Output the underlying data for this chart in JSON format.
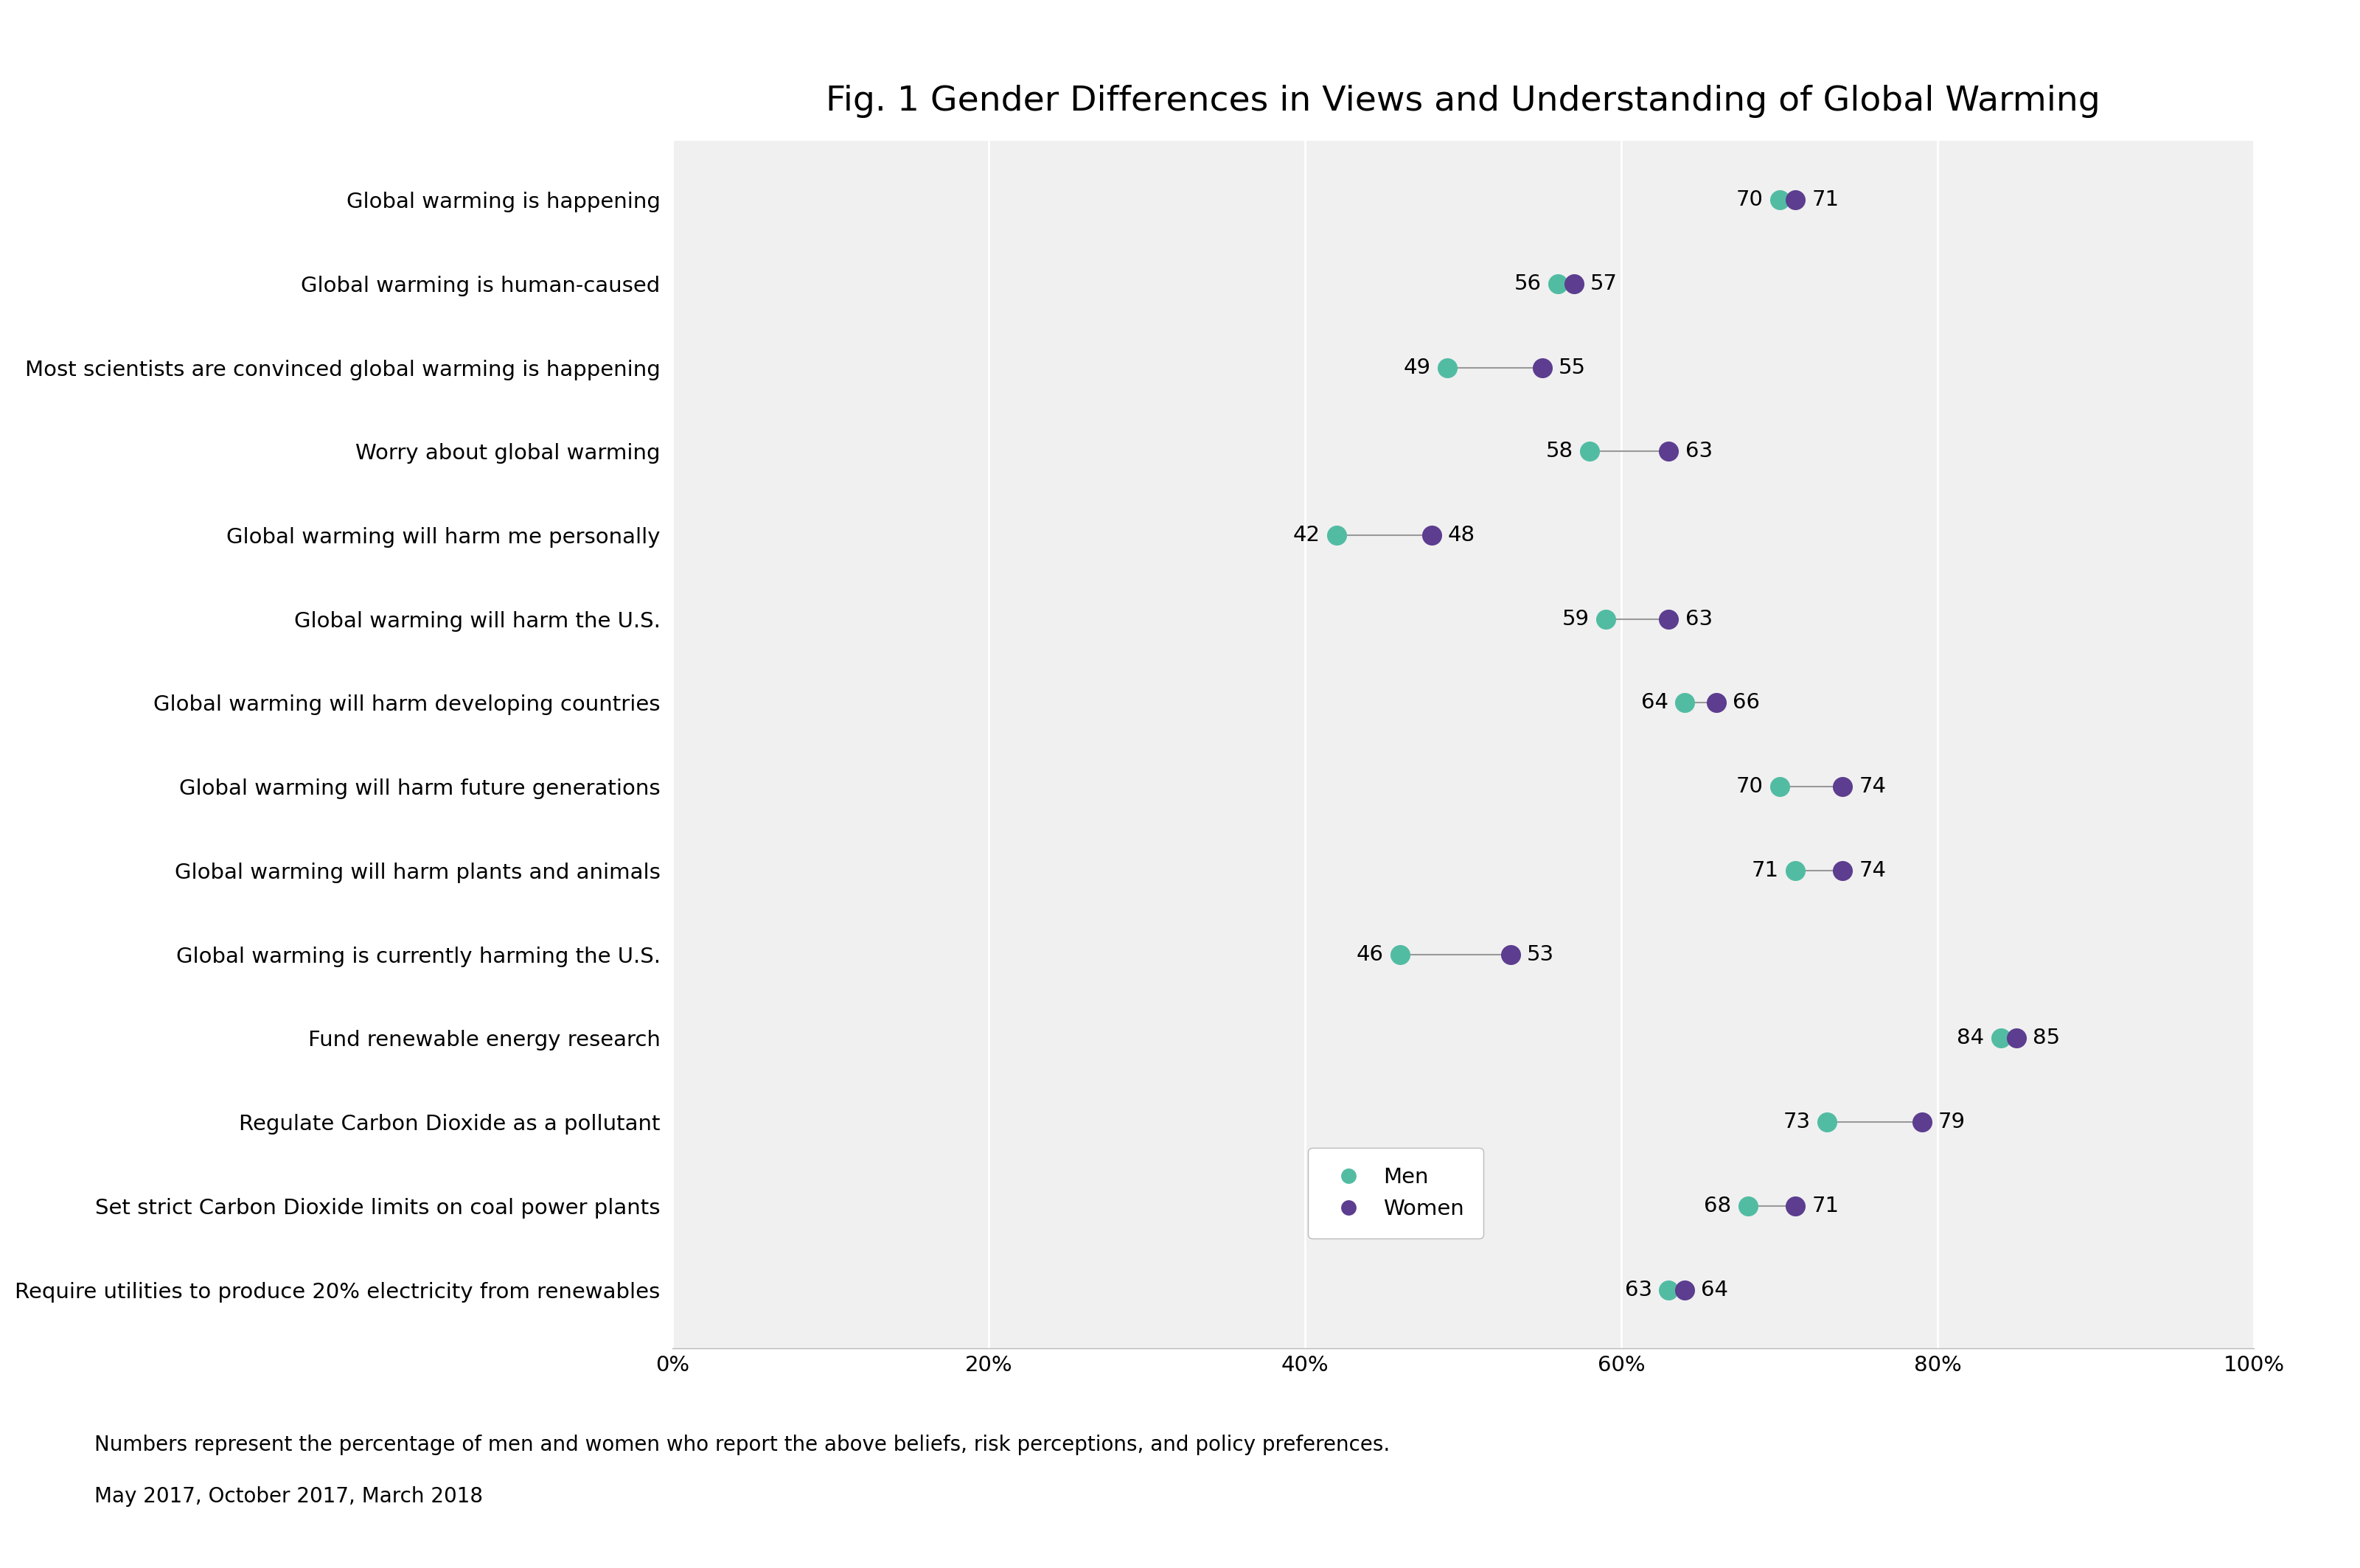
{
  "title": "Fig. 1 Gender Differences in Views and Understanding of Global Warming",
  "categories": [
    "Global warming is happening",
    "Global warming is human-caused",
    "Most scientists are convinced global warming is happening",
    "Worry about global warming",
    "Global warming will harm me personally",
    "Global warming will harm the U.S.",
    "Global warming will harm developing countries",
    "Global warming will harm future generations",
    "Global warming will harm plants and animals",
    "Global warming is currently harming the U.S.",
    "Fund renewable energy research",
    "Regulate Carbon Dioxide as a pollutant",
    "Set strict Carbon Dioxide limits on coal power plants",
    "Require utilities to produce 20% electricity from renewables"
  ],
  "men_values": [
    70,
    56,
    49,
    58,
    42,
    59,
    64,
    70,
    71,
    46,
    84,
    73,
    68,
    63
  ],
  "women_values": [
    71,
    57,
    55,
    63,
    48,
    63,
    66,
    74,
    74,
    53,
    85,
    79,
    71,
    64
  ],
  "men_color": "#52BCA3",
  "women_color": "#5C3D8F",
  "background_color": "#FFFFFF",
  "plot_bg_color": "#F0F0F0",
  "grid_color": "#FFFFFF",
  "footnote1": "Numbers represent the percentage of men and women who report the above beliefs, risk perceptions, and policy preferences.",
  "footnote2": "May 2017, October 2017, March 2018",
  "xlim": [
    0,
    100
  ],
  "xticks": [
    0,
    20,
    40,
    60,
    80,
    100
  ],
  "xticklabels": [
    "0%",
    "20%",
    "40%",
    "60%",
    "80%",
    "100%"
  ],
  "marker_size": 380,
  "title_fontsize": 34,
  "label_fontsize": 21,
  "tick_fontsize": 21,
  "annotation_fontsize": 21,
  "footnote_fontsize": 20,
  "legend_fontsize": 21
}
